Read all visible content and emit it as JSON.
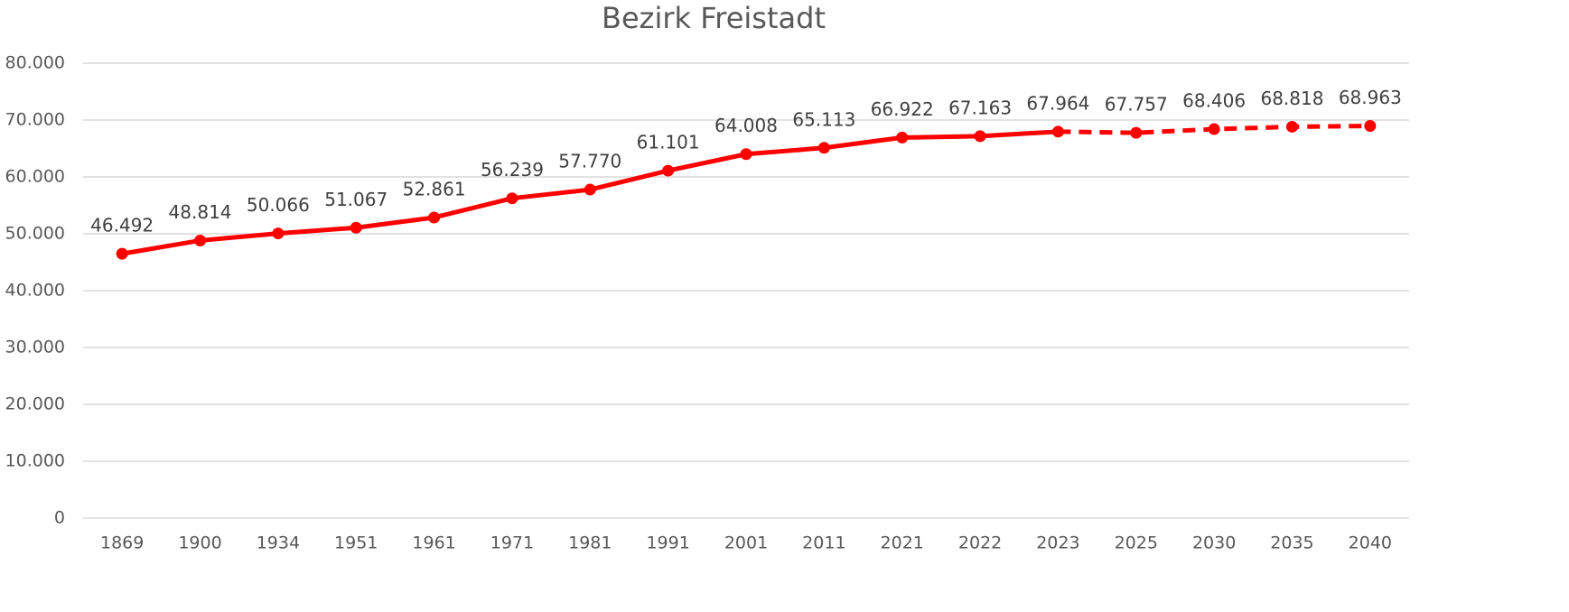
{
  "chart_data": {
    "type": "line",
    "title": "Bezirk Freistadt",
    "categories": [
      "1869",
      "1900",
      "1934",
      "1951",
      "1961",
      "1971",
      "1981",
      "1991",
      "2001",
      "2011",
      "2021",
      "2022",
      "2023",
      "2025",
      "2030",
      "2035",
      "2040"
    ],
    "series": [
      {
        "color": "#ff0000",
        "values": [
          46492,
          48814,
          50066,
          51067,
          52861,
          56239,
          57770,
          61101,
          64008,
          65113,
          66922,
          67163,
          67964,
          67757,
          68406,
          68818,
          68963
        ],
        "value_labels": [
          "46.492",
          "48.814",
          "50.066",
          "51.067",
          "52.861",
          "56.239",
          "57.770",
          "61.101",
          "64.008",
          "65.113",
          "66.922",
          "67.163",
          "67.964",
          "67.757",
          "68.406",
          "68.818",
          "68.963"
        ]
      }
    ],
    "dashed_from_index": 12,
    "ylim": [
      0,
      80000
    ],
    "yticks": [
      0,
      {
        "value": 10000,
        "label": "10.000"
      },
      {
        "value": 20000,
        "label": "20.000"
      },
      {
        "value": 30000,
        "label": "30.000"
      },
      {
        "value": 40000,
        "label": "40.000"
      },
      {
        "value": 50000,
        "label": "50.000"
      },
      {
        "value": 60000,
        "label": "60.000"
      },
      {
        "value": 70000,
        "label": "70.000"
      },
      {
        "value": 80000,
        "label": "80.000"
      }
    ],
    "grid": true
  }
}
